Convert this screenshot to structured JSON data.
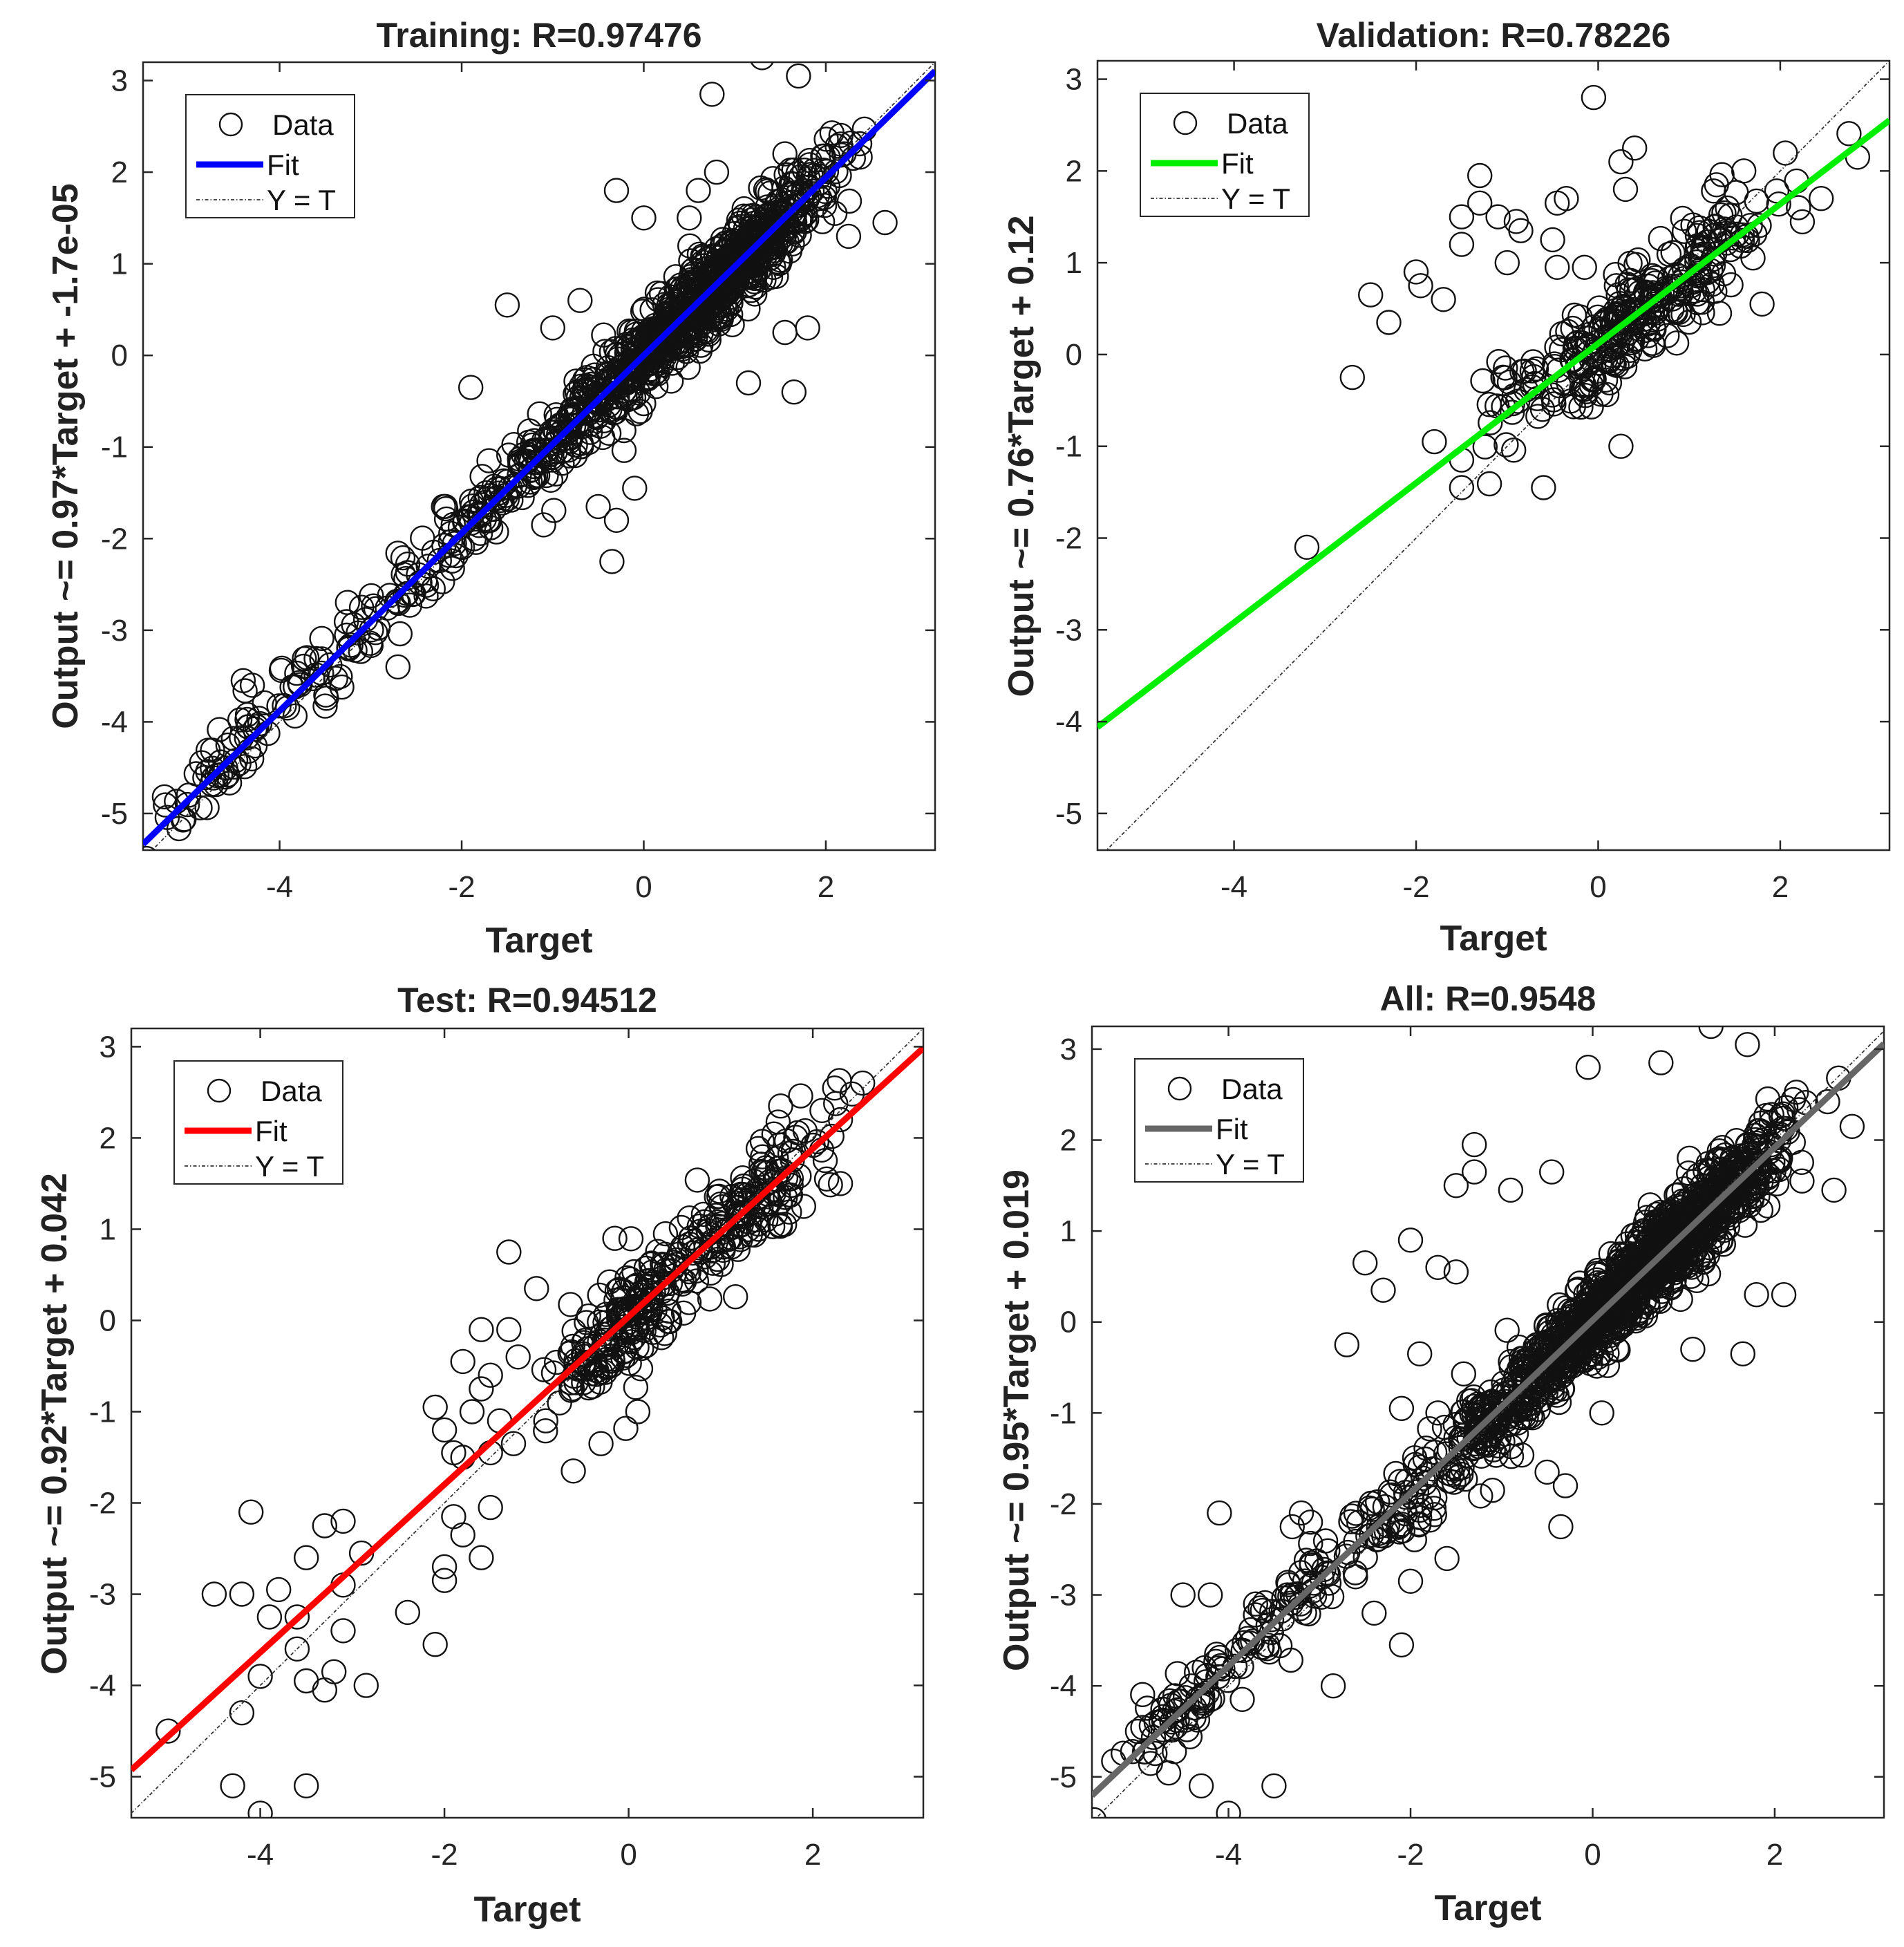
{
  "chart_data": [
    {
      "type": "scatter",
      "panel": "training",
      "title": "Training: R=0.97476",
      "xlabel": "Target",
      "ylabel": "Output ~= 0.97*Target + -1.7e-05",
      "xlim": [
        -5.5,
        3.2
      ],
      "ylim": [
        -5.4,
        3.2
      ],
      "xticks": [
        -4,
        -2,
        0,
        2
      ],
      "yticks": [
        -5,
        -4,
        -3,
        -2,
        -1,
        0,
        1,
        2,
        3
      ],
      "fit": {
        "slope": 0.97,
        "intercept": -1.7e-05,
        "color": "#0000ff"
      },
      "legend": {
        "position": "top-left",
        "entries": [
          "Data",
          "Fit",
          "Y = T"
        ]
      },
      "r": 0.97476,
      "cloud": {
        "n": 1100,
        "spread": 0.22,
        "x_clusters": [
          [
            -4.5,
            0.35,
            0.05
          ],
          [
            -3.2,
            0.5,
            0.05
          ],
          [
            -2.0,
            0.4,
            0.06
          ],
          [
            -1.0,
            0.35,
            0.1
          ],
          [
            0.2,
            0.55,
            0.42
          ],
          [
            1.2,
            0.45,
            0.32
          ]
        ]
      },
      "points": [
        [
          -5.0,
          -4.8
        ],
        [
          -4.3,
          -3.6
        ],
        [
          -4.4,
          -3.55
        ],
        [
          -1.9,
          -0.35
        ],
        [
          -1.5,
          0.55
        ],
        [
          -0.7,
          0.6
        ],
        [
          -0.3,
          1.8
        ],
        [
          0.0,
          1.5
        ],
        [
          0.6,
          1.8
        ],
        [
          0.8,
          2.0
        ],
        [
          0.75,
          2.85
        ],
        [
          1.3,
          3.25
        ],
        [
          1.7,
          3.05
        ],
        [
          1.55,
          2.2
        ],
        [
          2.2,
          2.2
        ],
        [
          2.65,
          1.45
        ],
        [
          2.25,
          1.3
        ],
        [
          1.55,
          0.25
        ],
        [
          1.8,
          0.3
        ],
        [
          1.65,
          -0.4
        ],
        [
          1.15,
          -0.3
        ],
        [
          -0.3,
          -1.8
        ],
        [
          -0.35,
          -2.25
        ],
        [
          -0.5,
          -1.65
        ],
        [
          -0.1,
          -1.45
        ],
        [
          -1.1,
          -1.85
        ],
        [
          -2.2,
          -1.65
        ],
        [
          -2.6,
          -2.6
        ],
        [
          -3.1,
          -2.75
        ],
        [
          -2.7,
          -3.4
        ],
        [
          -3.7,
          -3.3
        ],
        [
          -1.7,
          -1.15
        ],
        [
          -1.2,
          -1.05
        ],
        [
          -0.8,
          -0.9
        ],
        [
          2.1,
          1.55
        ],
        [
          -1.0,
          0.3
        ],
        [
          0.5,
          1.5
        ]
      ]
    },
    {
      "type": "scatter",
      "panel": "validation",
      "title": "Validation: R=0.78226",
      "xlabel": "Target",
      "ylabel": "Output ~= 0.76*Target + 0.12",
      "xlim": [
        -5.5,
        3.2
      ],
      "ylim": [
        -5.4,
        3.2
      ],
      "xticks": [
        -4,
        -2,
        0,
        2
      ],
      "yticks": [
        -5,
        -4,
        -3,
        -2,
        -1,
        0,
        1,
        2,
        3
      ],
      "fit": {
        "slope": 0.76,
        "intercept": 0.12,
        "color": "#00ee00"
      },
      "legend": {
        "position": "top-left",
        "entries": [
          "Data",
          "Fit",
          "Y = T"
        ]
      },
      "r": 0.78226,
      "cloud": {
        "n": 300,
        "spread": 0.28,
        "x_clusters": [
          [
            -0.9,
            0.2,
            0.1
          ],
          [
            0.1,
            0.35,
            0.5
          ],
          [
            1.1,
            0.45,
            0.4
          ]
        ]
      },
      "points": [
        [
          -3.2,
          -2.1
        ],
        [
          -2.7,
          -0.25
        ],
        [
          -2.5,
          0.65
        ],
        [
          -2.3,
          0.35
        ],
        [
          -2.0,
          0.9
        ],
        [
          -1.95,
          0.75
        ],
        [
          -1.7,
          0.6
        ],
        [
          -1.5,
          1.2
        ],
        [
          -1.5,
          1.5
        ],
        [
          -1.3,
          1.95
        ],
        [
          -1.3,
          1.65
        ],
        [
          -1.1,
          1.5
        ],
        [
          -1.0,
          1.0
        ],
        [
          -0.9,
          1.45
        ],
        [
          -0.85,
          1.35
        ],
        [
          -0.5,
          1.25
        ],
        [
          -0.45,
          0.95
        ],
        [
          -0.45,
          1.65
        ],
        [
          -0.05,
          2.8
        ],
        [
          0.25,
          2.1
        ],
        [
          0.4,
          2.25
        ],
        [
          0.3,
          1.8
        ],
        [
          0.2,
          0.75
        ],
        [
          -0.35,
          1.7
        ],
        [
          -0.15,
          0.95
        ],
        [
          -1.5,
          -1.45
        ],
        [
          -1.5,
          -1.15
        ],
        [
          -0.6,
          -1.45
        ],
        [
          0.25,
          -1.0
        ],
        [
          -1.8,
          -0.95
        ],
        [
          1.8,
          0.55
        ],
        [
          2.85,
          2.15
        ],
        [
          2.45,
          1.7
        ],
        [
          2.2,
          1.6
        ],
        [
          1.6,
          2.0
        ],
        [
          1.3,
          1.85
        ]
      ]
    },
    {
      "type": "scatter",
      "panel": "test",
      "title": "Test: R=0.94512",
      "xlabel": "Target",
      "ylabel": "Output ~= 0.92*Target + 0.042",
      "xlim": [
        -5.4,
        3.2
      ],
      "ylim": [
        -5.45,
        3.2
      ],
      "xticks": [
        -4,
        -2,
        0,
        2
      ],
      "yticks": [
        -5,
        -4,
        -3,
        -2,
        -1,
        0,
        1,
        2,
        3
      ],
      "fit": {
        "slope": 0.92,
        "intercept": 0.042,
        "color": "#ff0000"
      },
      "legend": {
        "position": "top-left",
        "entries": [
          "Data",
          "Fit",
          "Y = T"
        ]
      },
      "r": 0.94512,
      "cloud": {
        "n": 330,
        "spread": 0.28,
        "x_clusters": [
          [
            -0.05,
            0.35,
            0.55
          ],
          [
            1.2,
            0.5,
            0.45
          ]
        ]
      },
      "points": [
        [
          -5.0,
          -4.5
        ],
        [
          -4.5,
          -3.0
        ],
        [
          -4.2,
          -3.0
        ],
        [
          -4.1,
          -2.1
        ],
        [
          -4.2,
          -4.3
        ],
        [
          -4.3,
          -5.1
        ],
        [
          -4.0,
          -5.4
        ],
        [
          -3.5,
          -5.1
        ],
        [
          -3.9,
          -3.25
        ],
        [
          -3.8,
          -2.95
        ],
        [
          -3.6,
          -3.25
        ],
        [
          -3.5,
          -2.6
        ],
        [
          -3.3,
          -2.25
        ],
        [
          -3.1,
          -2.2
        ],
        [
          -3.1,
          -2.9
        ],
        [
          -2.9,
          -2.55
        ],
        [
          -3.6,
          -3.6
        ],
        [
          -3.5,
          -3.95
        ],
        [
          -3.3,
          -4.05
        ],
        [
          -3.2,
          -3.85
        ],
        [
          -3.1,
          -3.4
        ],
        [
          -2.85,
          -4.0
        ],
        [
          -4.0,
          -3.9
        ],
        [
          -2.4,
          -3.2
        ],
        [
          -2.1,
          -3.55
        ],
        [
          -2.0,
          -2.7
        ],
        [
          -2.0,
          -2.85
        ],
        [
          -1.9,
          -2.15
        ],
        [
          -1.8,
          -2.35
        ],
        [
          -1.6,
          -2.6
        ],
        [
          -1.5,
          -2.05
        ],
        [
          -2.1,
          -0.95
        ],
        [
          -2.0,
          -1.2
        ],
        [
          -1.9,
          -1.45
        ],
        [
          -1.8,
          -1.5
        ],
        [
          -1.7,
          -1.0
        ],
        [
          -1.6,
          -0.75
        ],
        [
          -1.5,
          -0.6
        ],
        [
          -1.4,
          -1.1
        ],
        [
          -1.5,
          -1.45
        ],
        [
          -1.3,
          -0.1
        ],
        [
          -1.2,
          -0.4
        ],
        [
          -1.3,
          0.75
        ],
        [
          -1.0,
          0.35
        ],
        [
          -1.6,
          -0.1
        ],
        [
          -1.8,
          -0.45
        ],
        [
          -1.25,
          -1.35
        ],
        [
          -0.6,
          -1.65
        ],
        [
          -0.3,
          -1.35
        ],
        [
          0.1,
          -1.0
        ],
        [
          1.9,
          1.25
        ],
        [
          2.15,
          1.55
        ],
        [
          2.3,
          1.5
        ],
        [
          1.65,
          2.35
        ],
        [
          2.1,
          2.3
        ],
        [
          2.3,
          2.2
        ],
        [
          0.4,
          0.95
        ],
        [
          -0.15,
          0.9
        ],
        [
          -0.9,
          -1.1
        ]
      ]
    },
    {
      "type": "scatter",
      "panel": "all",
      "title": "All: R=0.9548",
      "xlabel": "Target",
      "ylabel": "Output ~= 0.95*Target + 0.019",
      "xlim": [
        -5.5,
        3.2
      ],
      "ylim": [
        -5.45,
        3.25
      ],
      "xticks": [
        -4,
        -2,
        0,
        2
      ],
      "yticks": [
        -5,
        -4,
        -3,
        -2,
        -1,
        0,
        1,
        2,
        3
      ],
      "fit": {
        "slope": 0.95,
        "intercept": 0.019,
        "color": "#666666"
      },
      "legend": {
        "position": "top-left",
        "entries": [
          "Data",
          "Fit",
          "Y = T"
        ]
      },
      "r": 0.9548,
      "cloud": {
        "n": 1500,
        "spread": 0.24,
        "x_clusters": [
          [
            -4.4,
            0.35,
            0.05
          ],
          [
            -3.2,
            0.55,
            0.05
          ],
          [
            -2.0,
            0.45,
            0.06
          ],
          [
            -1.0,
            0.35,
            0.1
          ],
          [
            0.2,
            0.55,
            0.42
          ],
          [
            1.2,
            0.5,
            0.32
          ]
        ]
      },
      "points": [
        [
          -5.0,
          -4.5
        ],
        [
          -4.5,
          -3.0
        ],
        [
          -4.2,
          -3.0
        ],
        [
          -4.1,
          -2.1
        ],
        [
          -4.3,
          -5.1
        ],
        [
          -4.0,
          -5.4
        ],
        [
          -3.5,
          -5.1
        ],
        [
          -3.3,
          -2.25
        ],
        [
          -3.1,
          -2.2
        ],
        [
          -2.85,
          -4.0
        ],
        [
          -2.7,
          -0.25
        ],
        [
          -2.5,
          0.65
        ],
        [
          -2.3,
          0.35
        ],
        [
          -2.0,
          0.9
        ],
        [
          -1.7,
          0.6
        ],
        [
          -1.5,
          1.5
        ],
        [
          -1.3,
          1.95
        ],
        [
          -1.3,
          1.65
        ],
        [
          -0.9,
          1.45
        ],
        [
          -0.45,
          1.65
        ],
        [
          -0.05,
          2.8
        ],
        [
          0.75,
          2.85
        ],
        [
          1.3,
          3.25
        ],
        [
          1.7,
          3.05
        ],
        [
          2.85,
          2.15
        ],
        [
          2.65,
          1.45
        ],
        [
          1.8,
          0.3
        ],
        [
          1.65,
          -0.35
        ],
        [
          1.1,
          -0.3
        ],
        [
          -0.3,
          -1.8
        ],
        [
          -0.35,
          -2.25
        ],
        [
          -0.5,
          -1.65
        ],
        [
          -1.1,
          -1.85
        ],
        [
          -2.4,
          -3.2
        ],
        [
          -2.1,
          -3.55
        ],
        [
          -3.2,
          -2.1
        ],
        [
          -1.9,
          -0.35
        ],
        [
          -1.5,
          0.55
        ],
        [
          0.2,
          0.75
        ],
        [
          -2.1,
          -0.95
        ],
        [
          -1.7,
          -1.0
        ],
        [
          -1.4,
          -1.1
        ],
        [
          0.1,
          -1.0
        ],
        [
          -1.9,
          -2.15
        ],
        [
          -1.6,
          -2.6
        ],
        [
          -2.0,
          -2.85
        ],
        [
          2.1,
          0.3
        ],
        [
          2.3,
          1.55
        ]
      ]
    }
  ]
}
